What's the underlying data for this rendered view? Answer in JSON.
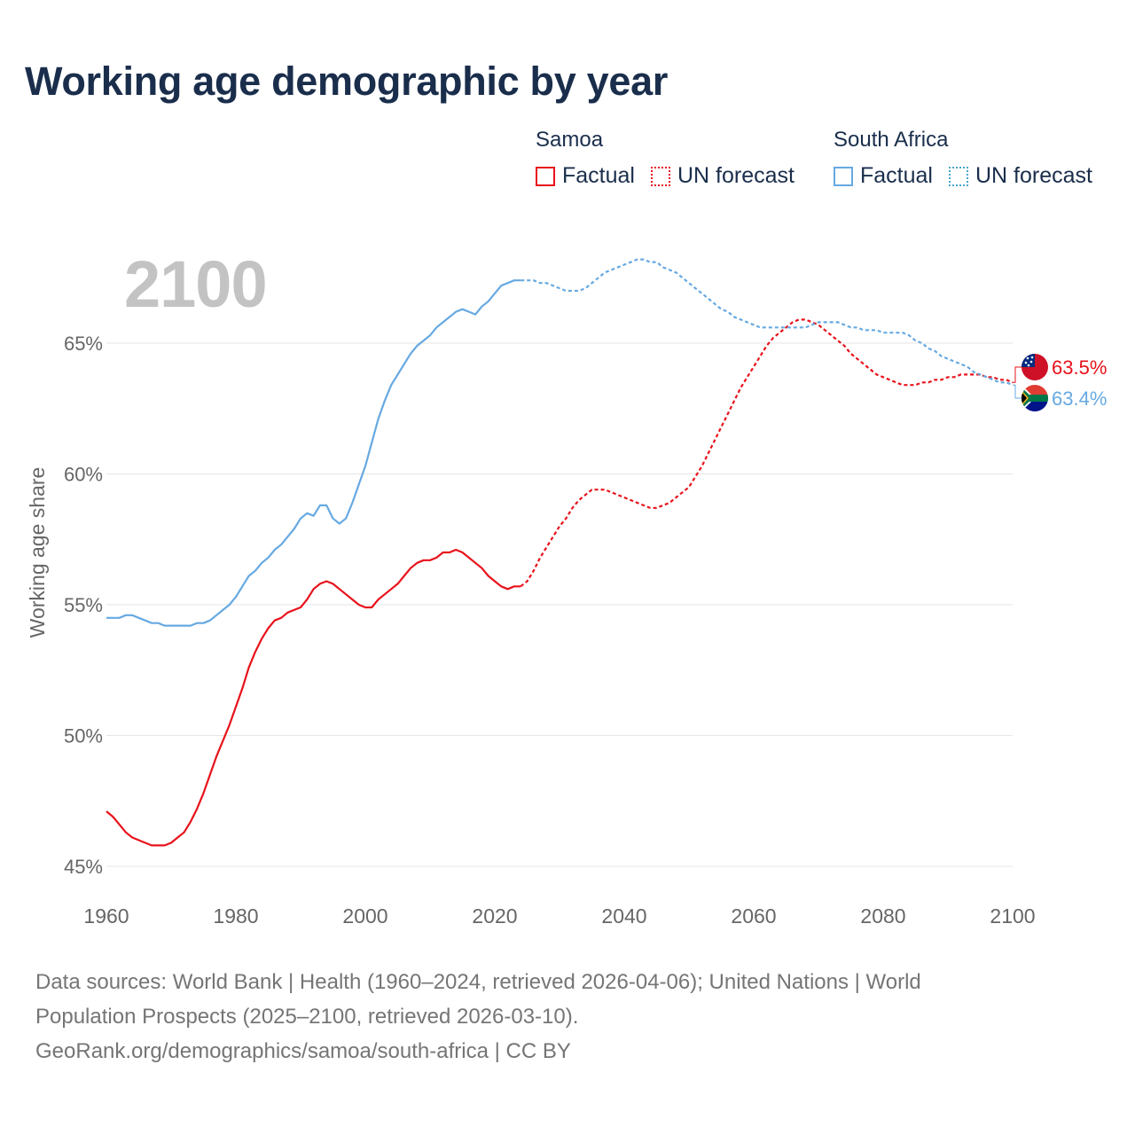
{
  "title": "Working age demographic by year",
  "year_label": "2100",
  "legend": {
    "groups": [
      {
        "name": "Samoa",
        "factual": "Factual",
        "forecast": "UN forecast"
      },
      {
        "name": "South Africa",
        "factual": "Factual",
        "forecast": "UN forecast"
      }
    ]
  },
  "colors": {
    "samoa": "#e8121b",
    "south_africa": "#66a9e2",
    "grid": "#e6e6e6",
    "axis_text": "#666666"
  },
  "footer": {
    "line1": "Data sources: World Bank | Health (1960–2024, retrieved 2026-04-06); United Nations | World",
    "line2": "Population Prospects (2025–2100, retrieved 2026-03-10).",
    "line3": "GeoRank.org/demographics/samoa/south-africa | CC BY"
  },
  "chart_data": {
    "type": "line",
    "title": "Working age demographic by year",
    "xlabel": "",
    "ylabel": "Working age share",
    "xlim": [
      1960,
      2100
    ],
    "ylim": [
      45,
      69
    ],
    "x_ticks": [
      1960,
      1980,
      2000,
      2020,
      2040,
      2060,
      2080,
      2100
    ],
    "y_ticks": [
      {
        "value": 45,
        "label": "45%"
      },
      {
        "value": 50,
        "label": "50%"
      },
      {
        "value": 55,
        "label": "55%"
      },
      {
        "value": 60,
        "label": "60%"
      },
      {
        "value": 65,
        "label": "65%"
      }
    ],
    "forecast_start": 2024,
    "series": [
      {
        "name": "Samoa",
        "color": "#e8121b",
        "end_label": "63.5%",
        "points": [
          [
            1960,
            47.1
          ],
          [
            1961,
            46.9
          ],
          [
            1962,
            46.6
          ],
          [
            1963,
            46.3
          ],
          [
            1964,
            46.1
          ],
          [
            1965,
            46.0
          ],
          [
            1966,
            45.9
          ],
          [
            1967,
            45.8
          ],
          [
            1968,
            45.8
          ],
          [
            1969,
            45.8
          ],
          [
            1970,
            45.9
          ],
          [
            1971,
            46.1
          ],
          [
            1972,
            46.3
          ],
          [
            1973,
            46.7
          ],
          [
            1974,
            47.2
          ],
          [
            1975,
            47.8
          ],
          [
            1976,
            48.5
          ],
          [
            1977,
            49.2
          ],
          [
            1978,
            49.8
          ],
          [
            1979,
            50.4
          ],
          [
            1980,
            51.1
          ],
          [
            1981,
            51.8
          ],
          [
            1982,
            52.6
          ],
          [
            1983,
            53.2
          ],
          [
            1984,
            53.7
          ],
          [
            1985,
            54.1
          ],
          [
            1986,
            54.4
          ],
          [
            1987,
            54.5
          ],
          [
            1988,
            54.7
          ],
          [
            1989,
            54.8
          ],
          [
            1990,
            54.9
          ],
          [
            1991,
            55.2
          ],
          [
            1992,
            55.6
          ],
          [
            1993,
            55.8
          ],
          [
            1994,
            55.9
          ],
          [
            1995,
            55.8
          ],
          [
            1996,
            55.6
          ],
          [
            1997,
            55.4
          ],
          [
            1998,
            55.2
          ],
          [
            1999,
            55.0
          ],
          [
            2000,
            54.9
          ],
          [
            2001,
            54.9
          ],
          [
            2002,
            55.2
          ],
          [
            2003,
            55.4
          ],
          [
            2004,
            55.6
          ],
          [
            2005,
            55.8
          ],
          [
            2006,
            56.1
          ],
          [
            2007,
            56.4
          ],
          [
            2008,
            56.6
          ],
          [
            2009,
            56.7
          ],
          [
            2010,
            56.7
          ],
          [
            2011,
            56.8
          ],
          [
            2012,
            57.0
          ],
          [
            2013,
            57.0
          ],
          [
            2014,
            57.1
          ],
          [
            2015,
            57.0
          ],
          [
            2016,
            56.8
          ],
          [
            2017,
            56.6
          ],
          [
            2018,
            56.4
          ],
          [
            2019,
            56.1
          ],
          [
            2020,
            55.9
          ],
          [
            2021,
            55.7
          ],
          [
            2022,
            55.6
          ],
          [
            2023,
            55.7
          ],
          [
            2024,
            55.7
          ],
          [
            2025,
            55.9
          ],
          [
            2026,
            56.3
          ],
          [
            2027,
            56.8
          ],
          [
            2028,
            57.2
          ],
          [
            2029,
            57.6
          ],
          [
            2030,
            58.0
          ],
          [
            2031,
            58.3
          ],
          [
            2032,
            58.7
          ],
          [
            2033,
            59.0
          ],
          [
            2034,
            59.2
          ],
          [
            2035,
            59.4
          ],
          [
            2036,
            59.4
          ],
          [
            2037,
            59.4
          ],
          [
            2038,
            59.3
          ],
          [
            2039,
            59.2
          ],
          [
            2040,
            59.1
          ],
          [
            2041,
            59.0
          ],
          [
            2042,
            58.9
          ],
          [
            2043,
            58.8
          ],
          [
            2044,
            58.7
          ],
          [
            2045,
            58.7
          ],
          [
            2046,
            58.8
          ],
          [
            2047,
            58.9
          ],
          [
            2048,
            59.1
          ],
          [
            2049,
            59.3
          ],
          [
            2050,
            59.5
          ],
          [
            2051,
            59.9
          ],
          [
            2052,
            60.3
          ],
          [
            2053,
            60.8
          ],
          [
            2054,
            61.3
          ],
          [
            2055,
            61.8
          ],
          [
            2056,
            62.3
          ],
          [
            2057,
            62.8
          ],
          [
            2058,
            63.3
          ],
          [
            2059,
            63.7
          ],
          [
            2060,
            64.1
          ],
          [
            2061,
            64.5
          ],
          [
            2062,
            64.9
          ],
          [
            2063,
            65.2
          ],
          [
            2064,
            65.4
          ],
          [
            2065,
            65.6
          ],
          [
            2066,
            65.8
          ],
          [
            2067,
            65.9
          ],
          [
            2068,
            65.9
          ],
          [
            2069,
            65.8
          ],
          [
            2070,
            65.7
          ],
          [
            2071,
            65.5
          ],
          [
            2072,
            65.3
          ],
          [
            2073,
            65.1
          ],
          [
            2074,
            64.9
          ],
          [
            2075,
            64.6
          ],
          [
            2076,
            64.4
          ],
          [
            2077,
            64.2
          ],
          [
            2078,
            64.0
          ],
          [
            2079,
            63.8
          ],
          [
            2080,
            63.7
          ],
          [
            2081,
            63.6
          ],
          [
            2082,
            63.5
          ],
          [
            2083,
            63.4
          ],
          [
            2084,
            63.4
          ],
          [
            2085,
            63.4
          ],
          [
            2086,
            63.5
          ],
          [
            2087,
            63.5
          ],
          [
            2088,
            63.6
          ],
          [
            2089,
            63.6
          ],
          [
            2090,
            63.7
          ],
          [
            2091,
            63.7
          ],
          [
            2092,
            63.8
          ],
          [
            2093,
            63.8
          ],
          [
            2094,
            63.8
          ],
          [
            2095,
            63.8
          ],
          [
            2096,
            63.7
          ],
          [
            2097,
            63.7
          ],
          [
            2098,
            63.6
          ],
          [
            2099,
            63.6
          ],
          [
            2100,
            63.5
          ]
        ]
      },
      {
        "name": "South Africa",
        "color": "#66a9e2",
        "end_label": "63.4%",
        "points": [
          [
            1960,
            54.5
          ],
          [
            1961,
            54.5
          ],
          [
            1962,
            54.5
          ],
          [
            1963,
            54.6
          ],
          [
            1964,
            54.6
          ],
          [
            1965,
            54.5
          ],
          [
            1966,
            54.4
          ],
          [
            1967,
            54.3
          ],
          [
            1968,
            54.3
          ],
          [
            1969,
            54.2
          ],
          [
            1970,
            54.2
          ],
          [
            1971,
            54.2
          ],
          [
            1972,
            54.2
          ],
          [
            1973,
            54.2
          ],
          [
            1974,
            54.3
          ],
          [
            1975,
            54.3
          ],
          [
            1976,
            54.4
          ],
          [
            1977,
            54.6
          ],
          [
            1978,
            54.8
          ],
          [
            1979,
            55.0
          ],
          [
            1980,
            55.3
          ],
          [
            1981,
            55.7
          ],
          [
            1982,
            56.1
          ],
          [
            1983,
            56.3
          ],
          [
            1984,
            56.6
          ],
          [
            1985,
            56.8
          ],
          [
            1986,
            57.1
          ],
          [
            1987,
            57.3
          ],
          [
            1988,
            57.6
          ],
          [
            1989,
            57.9
          ],
          [
            1990,
            58.3
          ],
          [
            1991,
            58.5
          ],
          [
            1992,
            58.4
          ],
          [
            1993,
            58.8
          ],
          [
            1994,
            58.8
          ],
          [
            1995,
            58.3
          ],
          [
            1996,
            58.1
          ],
          [
            1997,
            58.3
          ],
          [
            1998,
            58.9
          ],
          [
            1999,
            59.6
          ],
          [
            2000,
            60.3
          ],
          [
            2001,
            61.2
          ],
          [
            2002,
            62.1
          ],
          [
            2003,
            62.8
          ],
          [
            2004,
            63.4
          ],
          [
            2005,
            63.8
          ],
          [
            2006,
            64.2
          ],
          [
            2007,
            64.6
          ],
          [
            2008,
            64.9
          ],
          [
            2009,
            65.1
          ],
          [
            2010,
            65.3
          ],
          [
            2011,
            65.6
          ],
          [
            2012,
            65.8
          ],
          [
            2013,
            66.0
          ],
          [
            2014,
            66.2
          ],
          [
            2015,
            66.3
          ],
          [
            2016,
            66.2
          ],
          [
            2017,
            66.1
          ],
          [
            2018,
            66.4
          ],
          [
            2019,
            66.6
          ],
          [
            2020,
            66.9
          ],
          [
            2021,
            67.2
          ],
          [
            2022,
            67.3
          ],
          [
            2023,
            67.4
          ],
          [
            2024,
            67.4
          ],
          [
            2025,
            67.4
          ],
          [
            2026,
            67.4
          ],
          [
            2027,
            67.3
          ],
          [
            2028,
            67.3
          ],
          [
            2029,
            67.2
          ],
          [
            2030,
            67.1
          ],
          [
            2031,
            67.0
          ],
          [
            2032,
            67.0
          ],
          [
            2033,
            67.0
          ],
          [
            2034,
            67.1
          ],
          [
            2035,
            67.3
          ],
          [
            2036,
            67.5
          ],
          [
            2037,
            67.7
          ],
          [
            2038,
            67.8
          ],
          [
            2039,
            67.9
          ],
          [
            2040,
            68.0
          ],
          [
            2041,
            68.1
          ],
          [
            2042,
            68.2
          ],
          [
            2043,
            68.2
          ],
          [
            2044,
            68.1
          ],
          [
            2045,
            68.1
          ],
          [
            2046,
            67.9
          ],
          [
            2047,
            67.8
          ],
          [
            2048,
            67.7
          ],
          [
            2049,
            67.5
          ],
          [
            2050,
            67.3
          ],
          [
            2051,
            67.1
          ],
          [
            2052,
            66.9
          ],
          [
            2053,
            66.7
          ],
          [
            2054,
            66.5
          ],
          [
            2055,
            66.3
          ],
          [
            2056,
            66.2
          ],
          [
            2057,
            66.0
          ],
          [
            2058,
            65.9
          ],
          [
            2059,
            65.8
          ],
          [
            2060,
            65.7
          ],
          [
            2061,
            65.6
          ],
          [
            2062,
            65.6
          ],
          [
            2063,
            65.6
          ],
          [
            2064,
            65.6
          ],
          [
            2065,
            65.6
          ],
          [
            2066,
            65.6
          ],
          [
            2067,
            65.6
          ],
          [
            2068,
            65.6
          ],
          [
            2069,
            65.7
          ],
          [
            2070,
            65.8
          ],
          [
            2071,
            65.8
          ],
          [
            2072,
            65.8
          ],
          [
            2073,
            65.8
          ],
          [
            2074,
            65.7
          ],
          [
            2075,
            65.6
          ],
          [
            2076,
            65.6
          ],
          [
            2077,
            65.5
          ],
          [
            2078,
            65.5
          ],
          [
            2079,
            65.5
          ],
          [
            2080,
            65.4
          ],
          [
            2081,
            65.4
          ],
          [
            2082,
            65.4
          ],
          [
            2083,
            65.4
          ],
          [
            2084,
            65.3
          ],
          [
            2085,
            65.1
          ],
          [
            2086,
            65.0
          ],
          [
            2087,
            64.8
          ],
          [
            2088,
            64.7
          ],
          [
            2089,
            64.5
          ],
          [
            2090,
            64.4
          ],
          [
            2091,
            64.3
          ],
          [
            2092,
            64.2
          ],
          [
            2093,
            64.1
          ],
          [
            2094,
            63.9
          ],
          [
            2095,
            63.8
          ],
          [
            2096,
            63.7
          ],
          [
            2097,
            63.6
          ],
          [
            2098,
            63.5
          ],
          [
            2099,
            63.5
          ],
          [
            2100,
            63.4
          ]
        ]
      }
    ]
  }
}
